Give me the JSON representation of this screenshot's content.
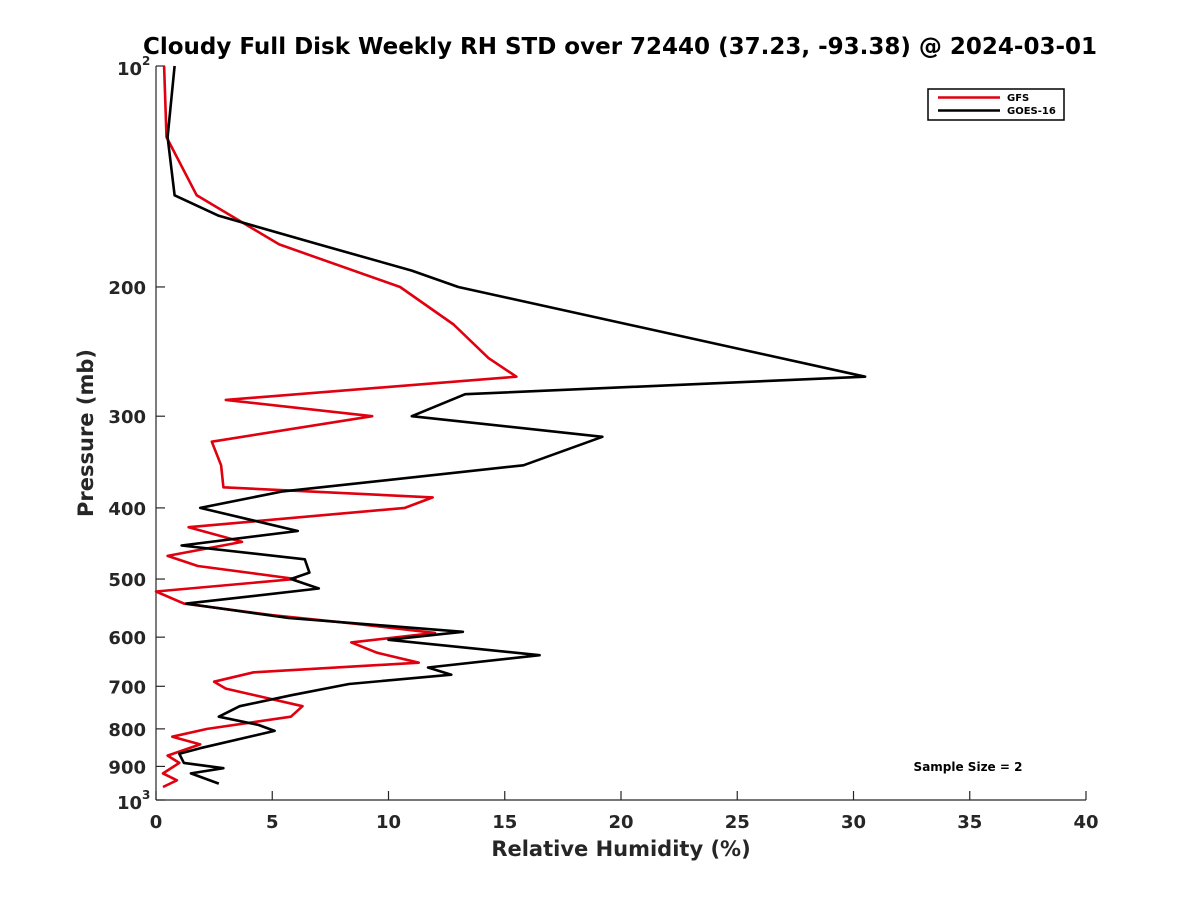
{
  "chart_data": {
    "type": "line",
    "title": "Cloudy Full Disk Weekly RH STD over 72440 (37.23, -93.38) @ 2024-03-01",
    "xlabel": "Relative Humidity (%)",
    "ylabel": "Pressure (mb)",
    "xlim": [
      0,
      40
    ],
    "ylim": [
      100,
      1000
    ],
    "yscale": "log",
    "y_reversed": true,
    "grid": false,
    "legend_position": "top-right",
    "x_ticks": [
      "0",
      "5",
      "10",
      "15",
      "20",
      "25",
      "30",
      "35",
      "40"
    ],
    "y_ticks": [
      {
        "value": 100,
        "label": "10",
        "exp": "2"
      },
      {
        "value": 200,
        "label": "200"
      },
      {
        "value": 300,
        "label": "300"
      },
      {
        "value": 400,
        "label": "400"
      },
      {
        "value": 500,
        "label": "500"
      },
      {
        "value": 600,
        "label": "600"
      },
      {
        "value": 700,
        "label": "700"
      },
      {
        "value": 800,
        "label": "800"
      },
      {
        "value": 900,
        "label": "900"
      },
      {
        "value": 1000,
        "label": "10",
        "exp": "3"
      }
    ],
    "annotation": "Sample Size = 2",
    "series": [
      {
        "name": "GFS",
        "color": "#e0000f",
        "points": [
          [
            0.35,
            100
          ],
          [
            0.45,
            125
          ],
          [
            1.75,
            150
          ],
          [
            5.3,
            175
          ],
          [
            10.5,
            200
          ],
          [
            12.8,
            225
          ],
          [
            14.3,
            250
          ],
          [
            15.5,
            265
          ],
          [
            3.0,
            285
          ],
          [
            9.3,
            300
          ],
          [
            2.4,
            325
          ],
          [
            2.8,
            350
          ],
          [
            2.9,
            375
          ],
          [
            11.9,
            387
          ],
          [
            10.7,
            400
          ],
          [
            1.4,
            425
          ],
          [
            3.7,
            445
          ],
          [
            0.5,
            465
          ],
          [
            1.8,
            480
          ],
          [
            6.0,
            500
          ],
          [
            0.0,
            520
          ],
          [
            1.2,
            540
          ],
          [
            5.0,
            560
          ],
          [
            8.5,
            575
          ],
          [
            12.0,
            592
          ],
          [
            8.4,
            610
          ],
          [
            9.5,
            630
          ],
          [
            11.3,
            650
          ],
          [
            4.2,
            670
          ],
          [
            2.5,
            690
          ],
          [
            3.0,
            705
          ],
          [
            6.3,
            745
          ],
          [
            5.8,
            770
          ],
          [
            2.2,
            800
          ],
          [
            0.7,
            820
          ],
          [
            1.9,
            840
          ],
          [
            0.5,
            870
          ],
          [
            1.0,
            890
          ],
          [
            0.3,
            920
          ],
          [
            0.9,
            940
          ],
          [
            0.3,
            960
          ]
        ]
      },
      {
        "name": "GOES-16",
        "color": "#000000",
        "points": [
          [
            0.8,
            100
          ],
          [
            0.5,
            125
          ],
          [
            0.8,
            150
          ],
          [
            2.7,
            160
          ],
          [
            7.0,
            175
          ],
          [
            11.0,
            190
          ],
          [
            13.0,
            200
          ],
          [
            30.5,
            265
          ],
          [
            13.3,
            280
          ],
          [
            11.0,
            300
          ],
          [
            19.2,
            320
          ],
          [
            15.8,
            350
          ],
          [
            5.4,
            380
          ],
          [
            1.9,
            400
          ],
          [
            6.1,
            430
          ],
          [
            1.1,
            450
          ],
          [
            6.4,
            470
          ],
          [
            6.6,
            490
          ],
          [
            5.8,
            500
          ],
          [
            7.0,
            515
          ],
          [
            1.3,
            540
          ],
          [
            5.7,
            565
          ],
          [
            13.2,
            590
          ],
          [
            10.0,
            605
          ],
          [
            16.5,
            635
          ],
          [
            11.7,
            660
          ],
          [
            12.7,
            675
          ],
          [
            8.3,
            695
          ],
          [
            5.8,
            720
          ],
          [
            3.6,
            745
          ],
          [
            2.7,
            770
          ],
          [
            4.4,
            790
          ],
          [
            5.1,
            805
          ],
          [
            1.9,
            850
          ],
          [
            1.0,
            865
          ],
          [
            1.2,
            890
          ],
          [
            2.9,
            905
          ],
          [
            1.5,
            920
          ],
          [
            2.7,
            950
          ]
        ]
      }
    ]
  }
}
